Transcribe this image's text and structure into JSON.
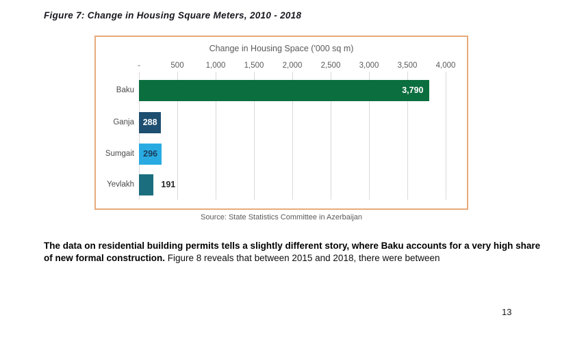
{
  "figure": {
    "caption": "Figure 7: Change in Housing Square Meters, 2010 - 2018",
    "source": "Source: State Statistics Committee in Azerbaijan"
  },
  "chart_data": {
    "type": "bar",
    "orientation": "horizontal",
    "title": "Change in Housing Space ('000 sq m)",
    "categories": [
      "Baku",
      "Ganja",
      "Sumgait",
      "Yevlakh"
    ],
    "values": [
      3790,
      288,
      296,
      191
    ],
    "value_labels": [
      "3,790",
      "288",
      "296",
      "191"
    ],
    "bar_colors": [
      "#0b6e3e",
      "#1e4e70",
      "#29abe2",
      "#1a6e7e"
    ],
    "value_label_styles": [
      "inside-end-white",
      "inside-white",
      "inside-dark",
      "outside-dark"
    ],
    "x_tick_labels": [
      "-",
      "500",
      "1,000",
      "1,500",
      "2,000",
      "2,500",
      "3,000",
      "3,500",
      "4,000"
    ],
    "x_tick_values": [
      0,
      500,
      1000,
      1500,
      2000,
      2500,
      3000,
      3500,
      4000
    ],
    "xlim": [
      0,
      4000
    ],
    "grid": true,
    "legend": "none",
    "colors": {
      "frame_border": "#e8a97a",
      "gridline": "#d9d9d9",
      "axis_text": "#595959",
      "category_text": "#4a4a4a",
      "inside_dark_label": "#1b3d5c",
      "outside_label": "#262626"
    }
  },
  "body": {
    "bold": "The data on residential building permits tells a slightly different story, where Baku accounts for a very high share of new formal construction.",
    "regular": " Figure 8 reveals that between 2015 and 2018, there were between"
  },
  "page": {
    "number": "13"
  }
}
